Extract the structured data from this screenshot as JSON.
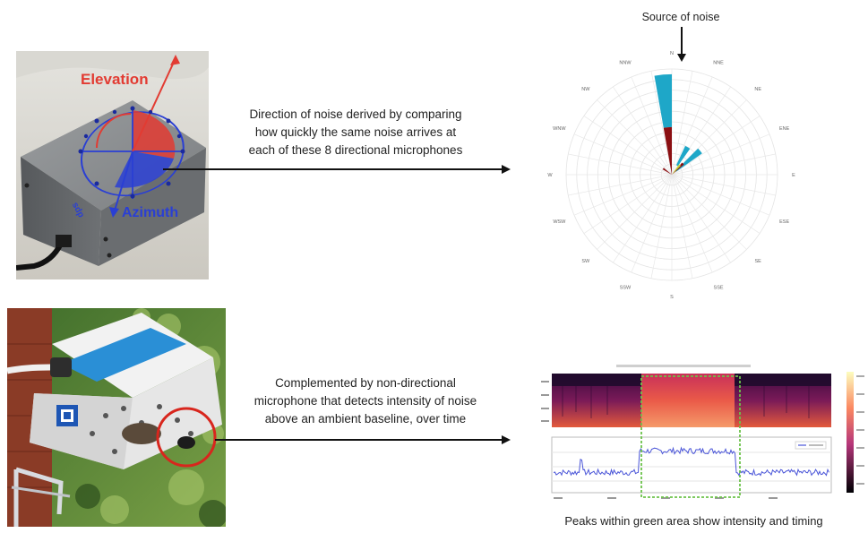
{
  "top_photo": {
    "elevation_label": "Elevation",
    "azimuth_label": "Azimuth",
    "brand_mark": "sdp"
  },
  "top_caption": {
    "line1": "Direction of noise derived by comparing",
    "line2": "how quickly the same noise arrives at",
    "line3": "each of these 8 directional microphones"
  },
  "polar": {
    "title": "Source of noise",
    "directions": [
      "N",
      "NNE",
      "NE",
      "ENE",
      "E",
      "ESE",
      "SE",
      "SSE",
      "S",
      "SSW",
      "SW",
      "WSW",
      "W",
      "WNW",
      "NW",
      "NNW"
    ]
  },
  "bottom_caption": {
    "line1": "Complemented by non-directional",
    "line2": "microphone that detects intensity of noise",
    "line3": "above an ambient baseline, over time"
  },
  "footer_caption": "Peaks within green area show intensity and timing",
  "colors": {
    "elevation": "#e23b32",
    "azimuth": "#2a3fd4",
    "polar_cyan": "#1ea7c8",
    "polar_maroon": "#8b0f12",
    "highlight_green": "#6cc24a",
    "circle_red": "#d8261d",
    "trace_blue": "#4a55d8"
  },
  "chart_data": [
    {
      "type": "polar-bar",
      "title": "Source of noise",
      "directions": [
        "N",
        "NNE",
        "NE",
        "ENE",
        "E",
        "ESE",
        "SE",
        "SSE",
        "S",
        "SSW",
        "SW",
        "WSW",
        "W",
        "WNW",
        "NW",
        "NNW"
      ],
      "bars": [
        {
          "angle_deg": 355,
          "inner": 0.45,
          "outer": 0.95,
          "color": "#1ea7c8"
        },
        {
          "angle_deg": 355,
          "inner": 0.0,
          "outer": 0.45,
          "color": "#8b0f12"
        },
        {
          "angle_deg": 30,
          "inner": 0.1,
          "outer": 0.3,
          "color": "#1ea7c8"
        },
        {
          "angle_deg": 50,
          "inner": 0.05,
          "outer": 0.35,
          "color": "#1ea7c8"
        },
        {
          "angle_deg": 45,
          "inner": 0.0,
          "outer": 0.15,
          "color": "#8b0f12"
        },
        {
          "angle_deg": 40,
          "inner": 0.0,
          "outer": 0.12,
          "color": "#c8d43a"
        },
        {
          "angle_deg": 305,
          "inner": 0.0,
          "outer": 0.1,
          "color": "#8b0f12"
        }
      ]
    },
    {
      "type": "line",
      "highlight": {
        "x_start": 0.31,
        "x_end": 0.66
      },
      "baseline": 0.35,
      "peak_level": 0.78
    }
  ]
}
